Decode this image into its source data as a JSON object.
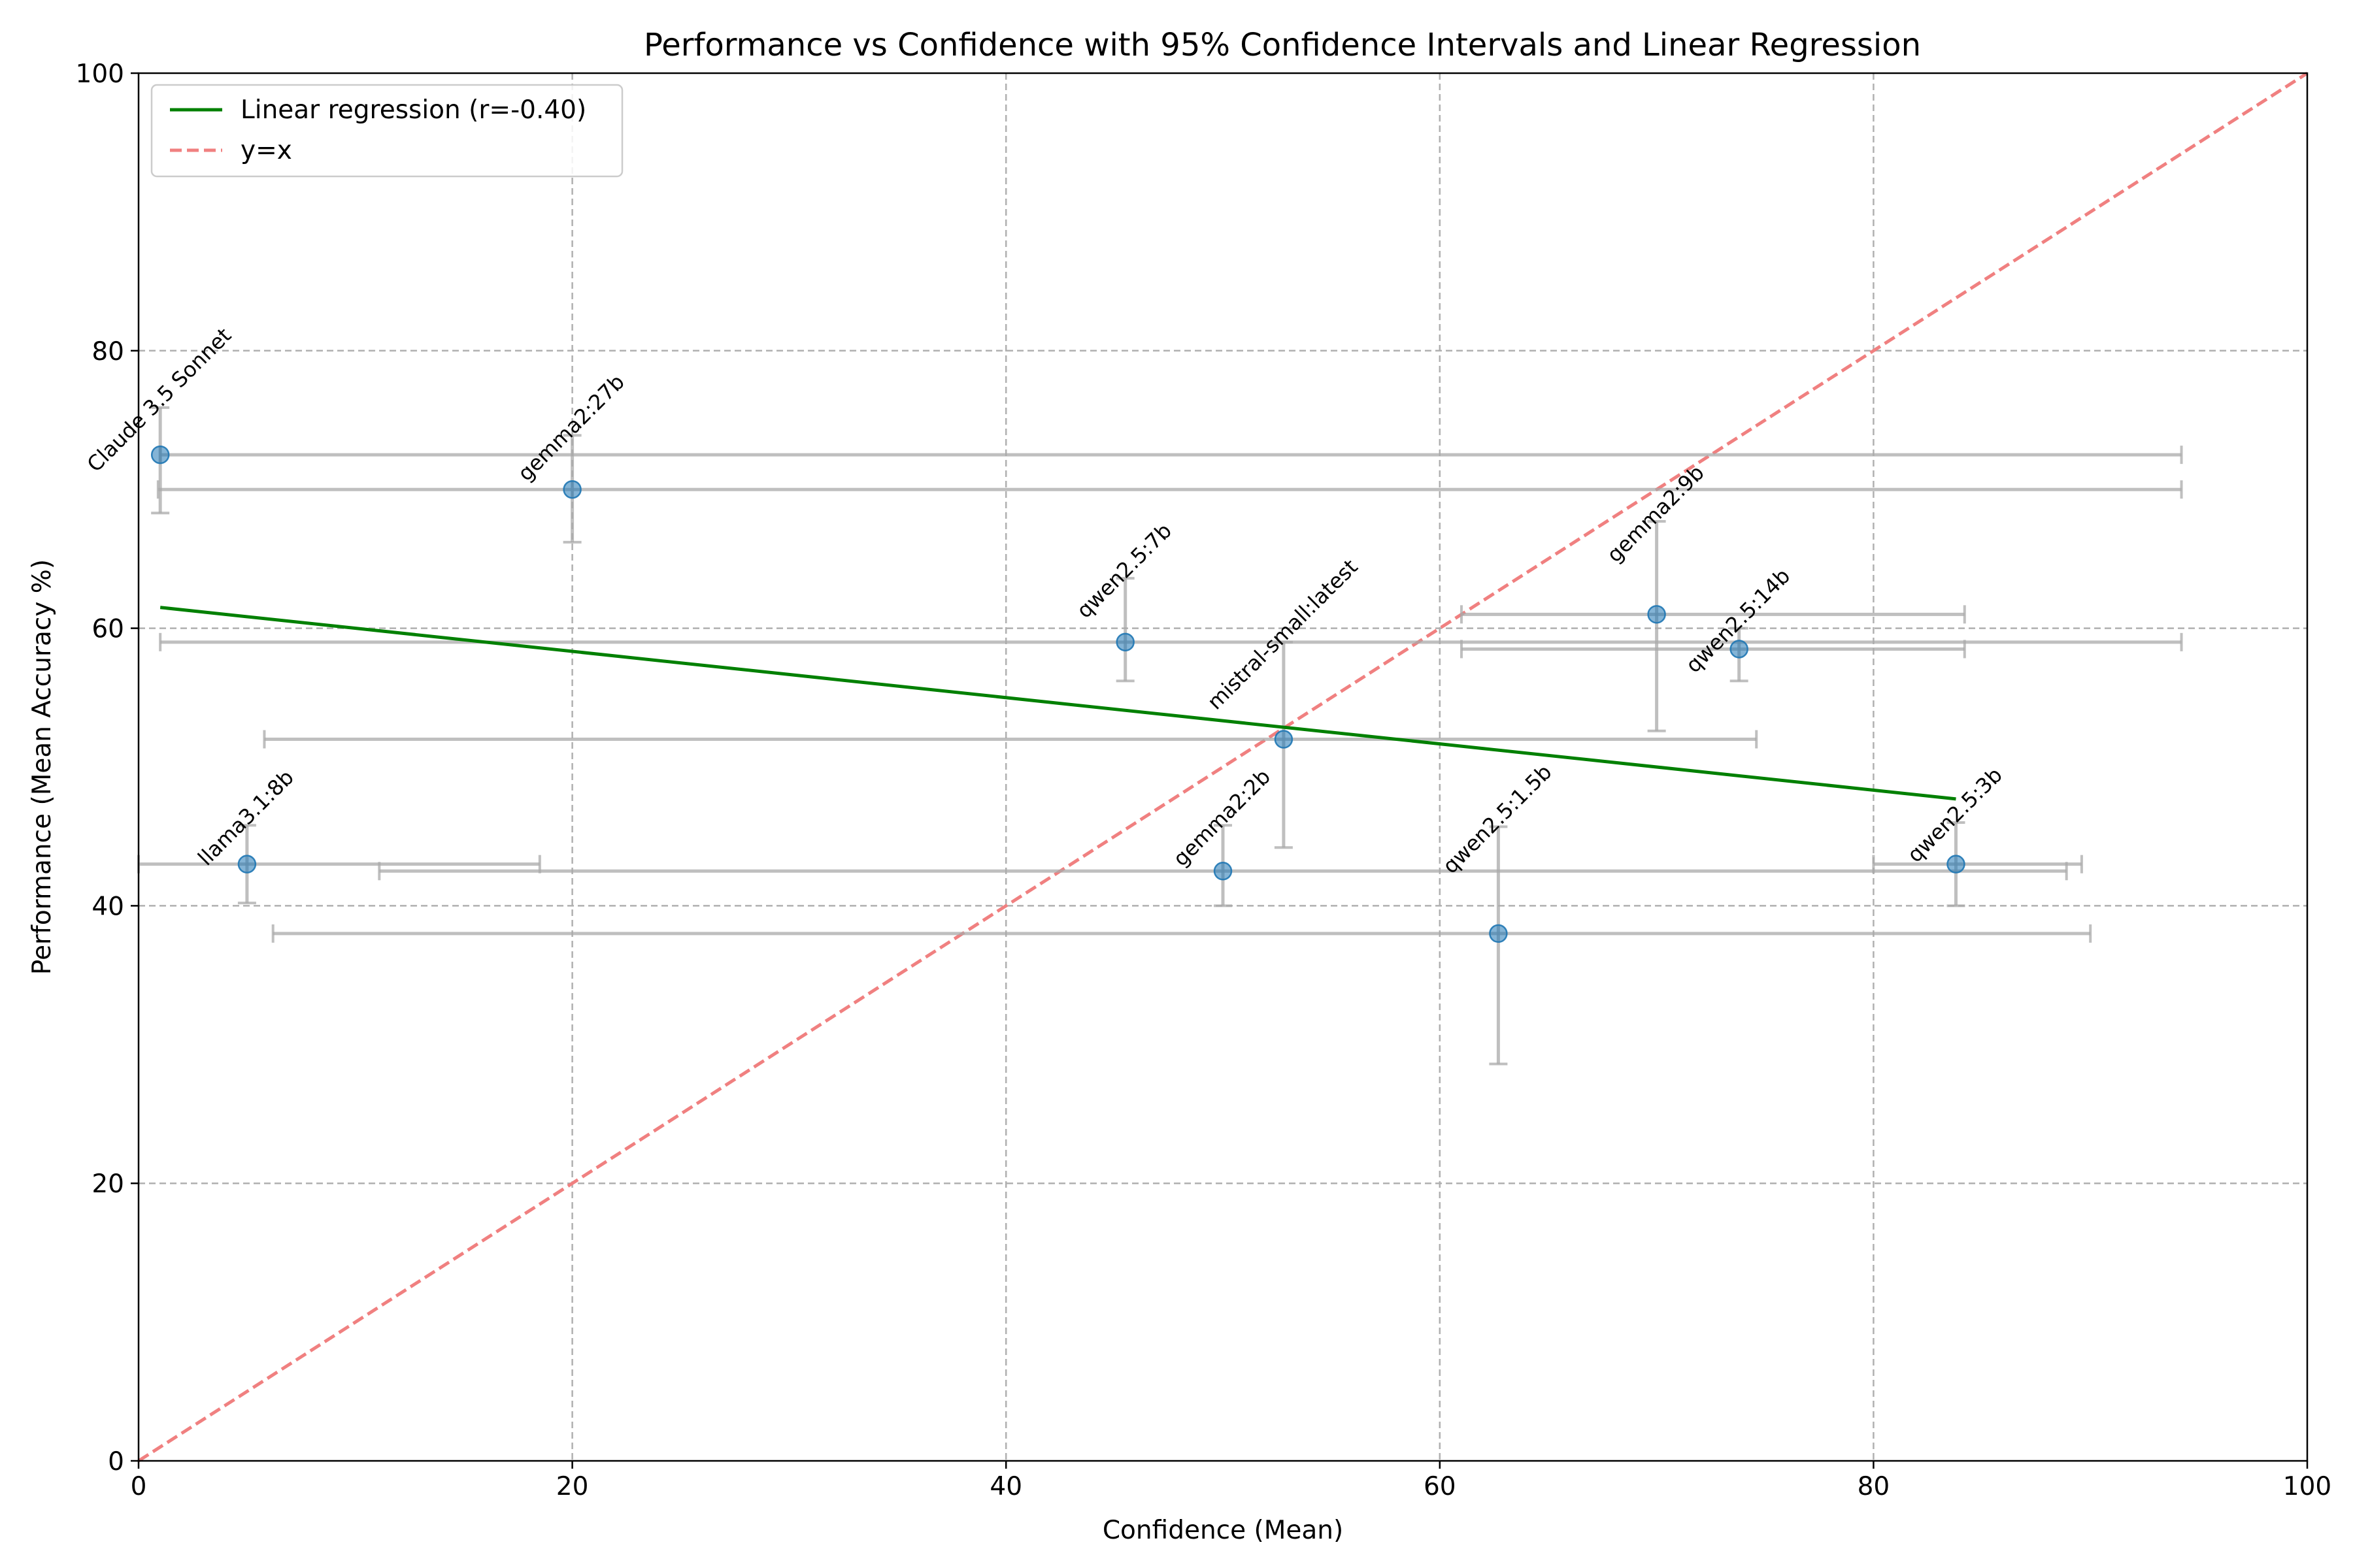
{
  "chart_data": {
    "type": "scatter",
    "title": "Performance vs Confidence with 95% Confidence Intervals and Linear Regression",
    "xlabel": "Confidence (Mean)",
    "ylabel": "Performance (Mean Accuracy %)",
    "xlim": [
      0,
      100
    ],
    "ylim": [
      0,
      100
    ],
    "xticks": [
      0,
      20,
      40,
      60,
      80,
      100
    ],
    "yticks": [
      0,
      20,
      40,
      60,
      80,
      100
    ],
    "grid": true,
    "legend_position": "top-left",
    "legend": {
      "regression": "Linear regression (r=-0.40)",
      "identity": "y=x"
    },
    "colors": {
      "points": "#1f77b4",
      "error_bars": "#a9a9a9",
      "regression": "#008000",
      "identity": "#f08080"
    },
    "points": [
      {
        "label": "Claude 3.5 Sonnet",
        "x": 1.0,
        "y": 72.5,
        "xerr": [
          1.0,
          94.2
        ],
        "yerr": [
          68.3,
          75.9
        ]
      },
      {
        "label": "gemma2:27b",
        "x": 20.0,
        "y": 70.0,
        "xerr": [
          0.9,
          94.2
        ],
        "yerr": [
          66.2,
          73.9
        ]
      },
      {
        "label": "llama3.1:8b",
        "x": 5.0,
        "y": 43.0,
        "xerr": [
          0.0,
          18.5
        ],
        "yerr": [
          40.2,
          45.8
        ]
      },
      {
        "label": "qwen2.5:7b",
        "x": 45.5,
        "y": 59.0,
        "xerr": [
          1.0,
          94.2
        ],
        "yerr": [
          56.2,
          63.6
        ]
      },
      {
        "label": "mistral-small:latest",
        "x": 52.8,
        "y": 52.0,
        "xerr": [
          5.8,
          74.6
        ],
        "yerr": [
          44.2,
          59.0
        ]
      },
      {
        "label": "gemma2:2b",
        "x": 50.0,
        "y": 42.5,
        "xerr": [
          11.1,
          88.9
        ],
        "yerr": [
          40.0,
          45.8
        ]
      },
      {
        "label": "qwen2.5:1.5b",
        "x": 62.7,
        "y": 38.0,
        "xerr": [
          6.2,
          90.0
        ],
        "yerr": [
          28.6,
          45.7
        ]
      },
      {
        "label": "gemma2:9b",
        "x": 70.0,
        "y": 61.0,
        "xerr": [
          61.0,
          84.2
        ],
        "yerr": [
          52.6,
          67.7
        ]
      },
      {
        "label": "qwen2.5:14b",
        "x": 73.8,
        "y": 58.5,
        "xerr": [
          61.0,
          84.2
        ],
        "yerr": [
          56.2,
          60.0
        ]
      },
      {
        "label": "qwen2.5:3b",
        "x": 83.8,
        "y": 43.0,
        "xerr": [
          80.0,
          89.6
        ],
        "yerr": [
          40.0,
          46.0
        ]
      }
    ],
    "regression_line": {
      "x": [
        1.0,
        83.8
      ],
      "y": [
        61.5,
        47.7
      ]
    },
    "identity_line": {
      "x": [
        0,
        100
      ],
      "y": [
        0,
        100
      ]
    }
  }
}
